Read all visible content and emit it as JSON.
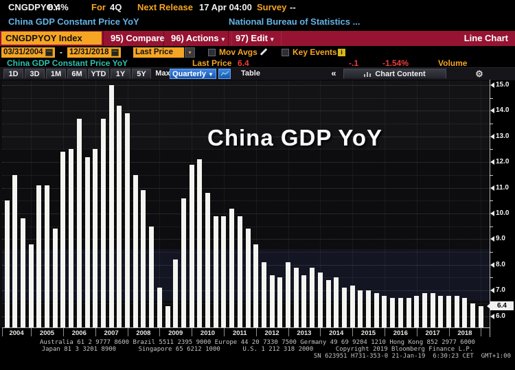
{
  "header": {
    "ticker": "CNGDPYOY",
    "value": "6.4%",
    "for_label": "For",
    "for_value": "4Q",
    "next_release_label": "Next Release",
    "next_release_value": "17 Apr 04:00",
    "survey_label": "Survey",
    "survey_value": "--",
    "description": "China GDP Constant Price YoY",
    "source": "National Bureau of Statistics ..."
  },
  "menubar": {
    "security_box": "CNGDPYOY Index",
    "items": [
      {
        "label": "95) Compare",
        "dropdown": false
      },
      {
        "label": "96) Actions",
        "dropdown": true
      },
      {
        "label": "97) Edit",
        "dropdown": true
      }
    ],
    "right_label": "Line Chart"
  },
  "controls": {
    "date_from": "03/31/2004",
    "date_sep": "-",
    "date_to": "12/31/2018",
    "price_field": "Last Price",
    "mov_avgs": "Mov Avgs",
    "key_events": "Key Events"
  },
  "status": {
    "series_name": "China GDP Constant Price YoY",
    "last_price_label": "Last Price",
    "last_price_value": "6.4",
    "net_change": "-.1",
    "pct_change": "-1.54%",
    "volume_label": "Volume"
  },
  "toolbar": {
    "ranges": [
      "1D",
      "3D",
      "1M",
      "6M",
      "YTD",
      "1Y",
      "5Y",
      "Max"
    ],
    "frequency": "Quarterly",
    "table_label": "Table",
    "collapse": "«",
    "chart_content": "Chart Content"
  },
  "colors": {
    "amber": "#f5a523",
    "menu_red": "#961432",
    "cyan": "#64b4e6",
    "teal": "#2dc3af",
    "value_red": "#f03c3c",
    "selected_blue": "#2f7fe0",
    "bar_white": "#f4f4f1",
    "background": "#000000"
  },
  "chart_data": {
    "type": "bar",
    "annotation": "China GDP YoY",
    "series_name": "China GDP Constant Price YoY",
    "frequency": "Quarterly",
    "last_price": "6.4",
    "ylim": [
      5.6,
      15.2
    ],
    "yticks": [
      6,
      7,
      8,
      9,
      10,
      11,
      12,
      13,
      14,
      15
    ],
    "years": [
      2004,
      2005,
      2006,
      2007,
      2008,
      2009,
      2010,
      2011,
      2012,
      2013,
      2014,
      2015,
      2016,
      2017,
      2018
    ],
    "values": [
      10.5,
      11.5,
      9.8,
      8.8,
      11.1,
      11.1,
      9.4,
      12.4,
      12.5,
      13.7,
      12.2,
      12.5,
      13.7,
      15.0,
      14.2,
      13.9,
      11.5,
      10.9,
      9.5,
      7.1,
      6.4,
      8.2,
      10.6,
      11.9,
      12.1,
      10.8,
      9.9,
      9.9,
      10.2,
      9.9,
      9.4,
      8.8,
      8.1,
      7.6,
      7.5,
      8.1,
      7.9,
      7.6,
      7.9,
      7.7,
      7.4,
      7.5,
      7.1,
      7.2,
      7.0,
      7.0,
      6.9,
      6.8,
      6.7,
      6.7,
      6.7,
      6.8,
      6.9,
      6.9,
      6.8,
      6.8,
      6.8,
      6.7,
      6.5,
      6.4
    ]
  },
  "footer": {
    "line1": "Australia 61 2 9777 8600 Brazil 5511 2395 9000 Europe 44 20 7330 7500 Germany 49 69 9204 1210 Hong Kong 852 2977 6000",
    "line2": "Japan 81 3 3201 8900      Singapore 65 6212 1000      U.S. 1 212 318 2000      Copyright 2019 Bloomberg Finance L.P.",
    "line3": "SN 623951 H731-353-0 21-Jan-19  6:30:23 CET  GMT+1:00"
  }
}
